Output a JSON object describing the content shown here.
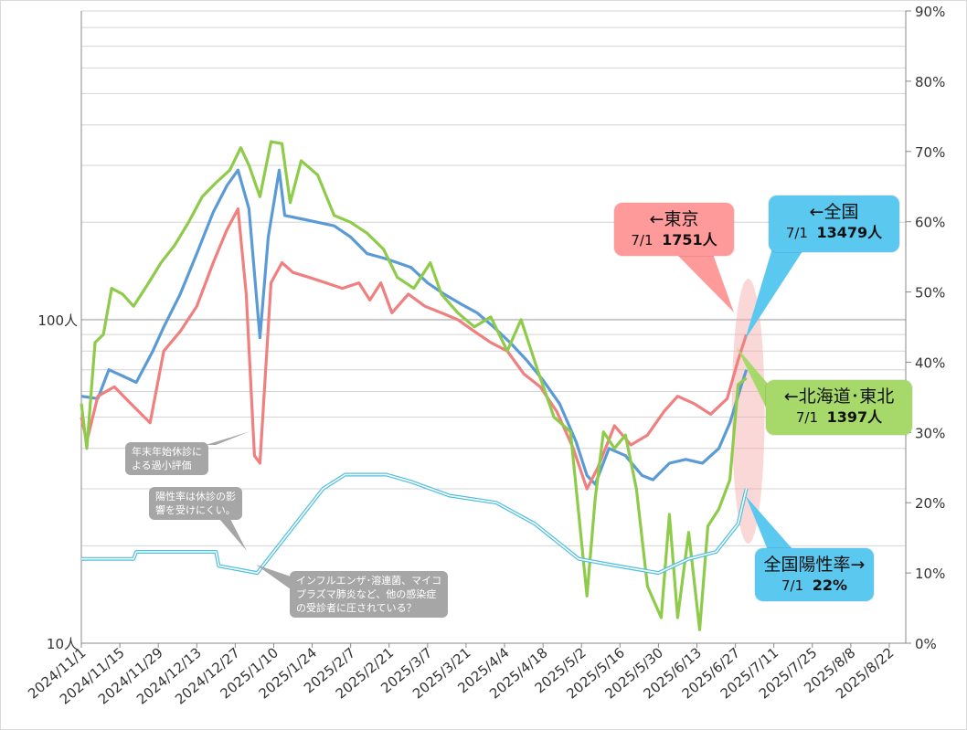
{
  "chart_data": {
    "type": "line",
    "y_left": {
      "scale": "log",
      "range": [
        10,
        900
      ],
      "tick_labels": [
        "100人",
        "10人"
      ]
    },
    "y_right": {
      "range": [
        0,
        90
      ],
      "tick_labels": [
        "0%",
        "10%",
        "20%",
        "30%",
        "40%",
        "50%",
        "60%",
        "70%",
        "80%",
        "90%"
      ]
    },
    "x_range": [
      "2024-11-01",
      "2025-08-28"
    ],
    "x_tick_labels": [
      "2024/11/1",
      "2024/11/15",
      "2024/11/29",
      "2024/12/13",
      "2024/12/27",
      "2025/1/10",
      "2025/1/24",
      "2025/2/7",
      "2025/2/21",
      "2025/3/7",
      "2025/3/21",
      "2025/4/4",
      "2025/4/18",
      "2025/5/2",
      "2025/5/16",
      "2025/5/30",
      "2025/6/13",
      "2025/6/27",
      "2025/7/11",
      "2025/7/25",
      "2025/8/8",
      "2025/8/22"
    ],
    "grid": true,
    "series": [
      {
        "name": "全国",
        "color": "#5b9bd5",
        "axis": "left",
        "points": [
          [
            "2024-11-01",
            58
          ],
          [
            "2024-11-07",
            57
          ],
          [
            "2024-11-11",
            70
          ],
          [
            "2024-11-16",
            67
          ],
          [
            "2024-11-21",
            64
          ],
          [
            "2024-11-27",
            80
          ],
          [
            "2024-12-01",
            95
          ],
          [
            "2024-12-07",
            120
          ],
          [
            "2024-12-13",
            160
          ],
          [
            "2024-12-19",
            215
          ],
          [
            "2024-12-24",
            260
          ],
          [
            "2024-12-28",
            290
          ],
          [
            "2025-01-01",
            220
          ],
          [
            "2025-01-05",
            88
          ],
          [
            "2025-01-08",
            180
          ],
          [
            "2025-01-12",
            290
          ],
          [
            "2025-01-14",
            210
          ],
          [
            "2025-01-20",
            205
          ],
          [
            "2025-01-26",
            200
          ],
          [
            "2025-02-01",
            195
          ],
          [
            "2025-02-07",
            180
          ],
          [
            "2025-02-13",
            160
          ],
          [
            "2025-02-19",
            155
          ],
          [
            "2025-02-24",
            150
          ],
          [
            "2025-03-01",
            145
          ],
          [
            "2025-03-07",
            130
          ],
          [
            "2025-03-13",
            120
          ],
          [
            "2025-03-19",
            112
          ],
          [
            "2025-03-25",
            105
          ],
          [
            "2025-03-31",
            95
          ],
          [
            "2025-04-06",
            85
          ],
          [
            "2025-04-12",
            75
          ],
          [
            "2025-04-18",
            65
          ],
          [
            "2025-04-24",
            55
          ],
          [
            "2025-04-30",
            42
          ],
          [
            "2025-05-04",
            33
          ],
          [
            "2025-05-07",
            31
          ],
          [
            "2025-05-12",
            40
          ],
          [
            "2025-05-18",
            38
          ],
          [
            "2025-05-24",
            33
          ],
          [
            "2025-05-28",
            32
          ],
          [
            "2025-06-03",
            36
          ],
          [
            "2025-06-09",
            37
          ],
          [
            "2025-06-15",
            36
          ],
          [
            "2025-06-21",
            40
          ],
          [
            "2025-06-25",
            48
          ],
          [
            "2025-06-29",
            62
          ],
          [
            "2025-07-01",
            70
          ]
        ]
      },
      {
        "name": "東京",
        "color": "#f08080",
        "axis": "left",
        "points": [
          [
            "2024-11-01",
            50
          ],
          [
            "2024-11-03",
            42
          ],
          [
            "2024-11-07",
            58
          ],
          [
            "2024-11-13",
            62
          ],
          [
            "2024-11-19",
            55
          ],
          [
            "2024-11-26",
            48
          ],
          [
            "2024-12-01",
            80
          ],
          [
            "2024-12-07",
            92
          ],
          [
            "2024-12-13",
            110
          ],
          [
            "2024-12-19",
            150
          ],
          [
            "2024-12-24",
            190
          ],
          [
            "2024-12-28",
            220
          ],
          [
            "2024-12-31",
            120
          ],
          [
            "2025-01-03",
            38
          ],
          [
            "2025-01-05",
            36
          ],
          [
            "2025-01-09",
            130
          ],
          [
            "2025-01-13",
            150
          ],
          [
            "2025-01-17",
            140
          ],
          [
            "2025-01-23",
            135
          ],
          [
            "2025-01-29",
            130
          ],
          [
            "2025-02-04",
            125
          ],
          [
            "2025-02-10",
            130
          ],
          [
            "2025-02-14",
            115
          ],
          [
            "2025-02-18",
            130
          ],
          [
            "2025-02-22",
            105
          ],
          [
            "2025-02-28",
            120
          ],
          [
            "2025-03-06",
            110
          ],
          [
            "2025-03-12",
            105
          ],
          [
            "2025-03-18",
            100
          ],
          [
            "2025-03-24",
            92
          ],
          [
            "2025-03-30",
            85
          ],
          [
            "2025-04-05",
            80
          ],
          [
            "2025-04-11",
            68
          ],
          [
            "2025-04-17",
            62
          ],
          [
            "2025-04-23",
            52
          ],
          [
            "2025-04-29",
            40
          ],
          [
            "2025-05-04",
            30
          ],
          [
            "2025-05-08",
            35
          ],
          [
            "2025-05-14",
            47
          ],
          [
            "2025-05-20",
            41
          ],
          [
            "2025-05-26",
            44
          ],
          [
            "2025-06-01",
            52
          ],
          [
            "2025-06-06",
            58
          ],
          [
            "2025-06-12",
            55
          ],
          [
            "2025-06-18",
            51
          ],
          [
            "2025-06-24",
            57
          ],
          [
            "2025-06-28",
            75
          ],
          [
            "2025-07-01",
            90
          ]
        ]
      },
      {
        "name": "北海道・東北",
        "color": "#8fcb4a",
        "axis": "left",
        "points": [
          [
            "2024-11-01",
            55
          ],
          [
            "2024-11-03",
            40
          ],
          [
            "2024-11-06",
            85
          ],
          [
            "2024-11-09",
            90
          ],
          [
            "2024-11-12",
            125
          ],
          [
            "2024-11-16",
            120
          ],
          [
            "2024-11-20",
            110
          ],
          [
            "2024-11-25",
            128
          ],
          [
            "2024-11-30",
            150
          ],
          [
            "2024-12-05",
            170
          ],
          [
            "2024-12-10",
            200
          ],
          [
            "2024-12-15",
            240
          ],
          [
            "2024-12-20",
            265
          ],
          [
            "2024-12-25",
            290
          ],
          [
            "2024-12-29",
            340
          ],
          [
            "2025-01-01",
            300
          ],
          [
            "2025-01-05",
            240
          ],
          [
            "2025-01-09",
            355
          ],
          [
            "2025-01-13",
            350
          ],
          [
            "2025-01-16",
            230
          ],
          [
            "2025-01-20",
            310
          ],
          [
            "2025-01-26",
            280
          ],
          [
            "2025-02-01",
            210
          ],
          [
            "2025-02-07",
            200
          ],
          [
            "2025-02-13",
            185
          ],
          [
            "2025-02-19",
            165
          ],
          [
            "2025-02-24",
            135
          ],
          [
            "2025-03-02",
            125
          ],
          [
            "2025-03-08",
            150
          ],
          [
            "2025-03-12",
            120
          ],
          [
            "2025-03-18",
            105
          ],
          [
            "2025-03-24",
            95
          ],
          [
            "2025-03-30",
            102
          ],
          [
            "2025-04-05",
            80
          ],
          [
            "2025-04-10",
            100
          ],
          [
            "2025-04-16",
            70
          ],
          [
            "2025-04-22",
            50
          ],
          [
            "2025-04-28",
            45
          ],
          [
            "2025-05-04",
            14
          ],
          [
            "2025-05-07",
            28
          ],
          [
            "2025-05-10",
            45
          ],
          [
            "2025-05-14",
            40
          ],
          [
            "2025-05-18",
            44
          ],
          [
            "2025-05-22",
            30
          ],
          [
            "2025-05-26",
            15
          ],
          [
            "2025-05-31",
            12
          ],
          [
            "2025-06-03",
            25
          ],
          [
            "2025-06-06",
            12
          ],
          [
            "2025-06-10",
            22
          ],
          [
            "2025-06-14",
            11
          ],
          [
            "2025-06-17",
            23
          ],
          [
            "2025-06-21",
            26
          ],
          [
            "2025-06-25",
            32
          ],
          [
            "2025-06-28",
            63
          ],
          [
            "2025-07-01",
            66
          ]
        ]
      },
      {
        "name": "全国陽性率",
        "color": "#4bbfe0",
        "axis": "right",
        "points": [
          [
            "2024-11-01",
            12
          ],
          [
            "2024-11-20",
            12
          ],
          [
            "2024-11-21",
            13
          ],
          [
            "2024-12-20",
            13
          ],
          [
            "2024-12-21",
            11
          ],
          [
            "2025-01-04",
            10
          ],
          [
            "2025-01-10",
            13
          ],
          [
            "2025-01-20",
            18
          ],
          [
            "2025-01-28",
            22
          ],
          [
            "2025-02-05",
            24
          ],
          [
            "2025-02-20",
            24
          ],
          [
            "2025-03-01",
            23
          ],
          [
            "2025-03-15",
            21
          ],
          [
            "2025-04-01",
            20
          ],
          [
            "2025-04-15",
            17
          ],
          [
            "2025-05-01",
            12
          ],
          [
            "2025-05-15",
            11
          ],
          [
            "2025-05-30",
            10
          ],
          [
            "2025-06-10",
            12
          ],
          [
            "2025-06-20",
            13
          ],
          [
            "2025-06-28",
            17
          ],
          [
            "2025-07-01",
            22
          ]
        ]
      }
    ]
  },
  "callouts": {
    "tokyo": {
      "title": "←東京",
      "date": "7/1",
      "value": "1751人",
      "bg": "#ff9a9a"
    },
    "national": {
      "title": "←全国",
      "date": "7/1",
      "value": "13479人",
      "bg": "#5bc8f0"
    },
    "hokkaido": {
      "title": "←北海道･東北",
      "date": "7/1",
      "value": "1397人",
      "bg": "#a6d96a"
    },
    "rate": {
      "title": "全国陽性率→",
      "date": "7/1",
      "value": "22%",
      "bg": "#5bc8f0"
    }
  },
  "notes": {
    "newyear": "年末年始休診に\nよる過小評価",
    "positivity": "陽性率は休診の影\n響を受けにくい。",
    "other": "インフルエンザ･溶連菌、マイコ\nプラズマ肺炎など、他の感染症\nの受診者に圧されている？"
  }
}
